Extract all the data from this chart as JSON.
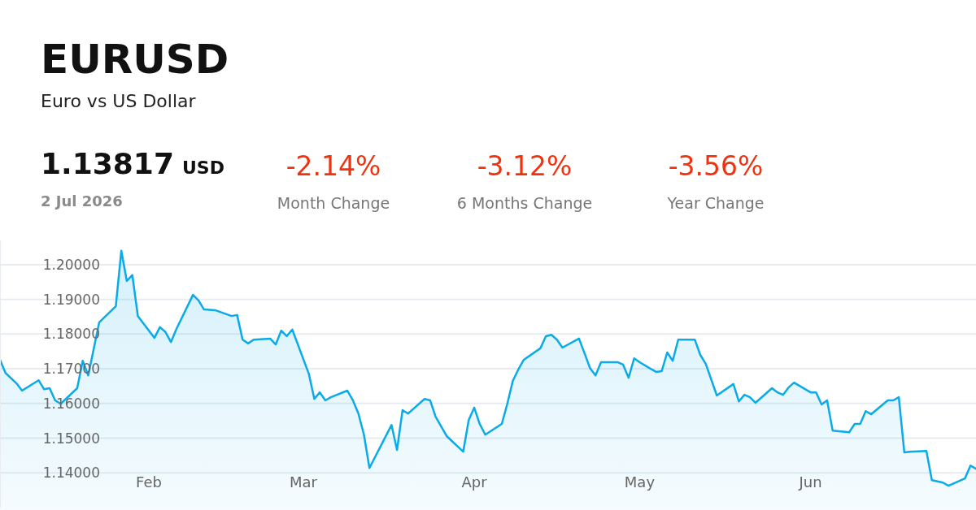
{
  "chart_data": {
    "type": "area",
    "title": "EURUSD",
    "subtitle": "Euro vs US Dollar",
    "annotations": [
      "1.13817",
      "USD",
      "2 Jul 2026",
      "-2.14%",
      "Month Change",
      "-3.12%",
      "6 Months Change",
      "-3.56%",
      "Year Change"
    ],
    "x": [
      "2026-01-05",
      "2026-01-06",
      "2026-01-08",
      "2026-01-09",
      "2026-01-12",
      "2026-01-13",
      "2026-01-14",
      "2026-01-15",
      "2026-01-16",
      "2026-01-19",
      "2026-01-20",
      "2026-01-21",
      "2026-01-23",
      "2026-01-26",
      "2026-01-27",
      "2026-01-28",
      "2026-01-29",
      "2026-01-30",
      "2026-02-02",
      "2026-02-03",
      "2026-02-04",
      "2026-02-05",
      "2026-02-06",
      "2026-02-09",
      "2026-02-10",
      "2026-02-11",
      "2026-02-13",
      "2026-02-16",
      "2026-02-17",
      "2026-02-18",
      "2026-02-19",
      "2026-02-20",
      "2026-02-23",
      "2026-02-24",
      "2026-02-25",
      "2026-02-26",
      "2026-02-27",
      "2026-03-02",
      "2026-03-03",
      "2026-03-04",
      "2026-03-05",
      "2026-03-06",
      "2026-03-09",
      "2026-03-10",
      "2026-03-11",
      "2026-03-12",
      "2026-03-13",
      "2026-03-17",
      "2026-03-18",
      "2026-03-19",
      "2026-03-20",
      "2026-03-23",
      "2026-03-24",
      "2026-03-25",
      "2026-03-27",
      "2026-03-30",
      "2026-03-31",
      "2026-04-01",
      "2026-04-02",
      "2026-04-03",
      "2026-04-06",
      "2026-04-07",
      "2026-04-08",
      "2026-04-09",
      "2026-04-10",
      "2026-04-13",
      "2026-04-14",
      "2026-04-15",
      "2026-04-16",
      "2026-04-17",
      "2026-04-20",
      "2026-04-21",
      "2026-04-22",
      "2026-04-23",
      "2026-04-24",
      "2026-04-27",
      "2026-04-28",
      "2026-04-29",
      "2026-04-30",
      "2026-05-01",
      "2026-05-03",
      "2026-05-04",
      "2026-05-05",
      "2026-05-06",
      "2026-05-07",
      "2026-05-08",
      "2026-05-11",
      "2026-05-12",
      "2026-05-13",
      "2026-05-15",
      "2026-05-18",
      "2026-05-19",
      "2026-05-20",
      "2026-05-21",
      "2026-05-22",
      "2026-05-25",
      "2026-05-26",
      "2026-05-27",
      "2026-05-28",
      "2026-05-29",
      "2026-06-01",
      "2026-06-02",
      "2026-06-03",
      "2026-06-04",
      "2026-06-05",
      "2026-06-08",
      "2026-06-09",
      "2026-06-10",
      "2026-06-11",
      "2026-06-12",
      "2026-06-15",
      "2026-06-16",
      "2026-06-17",
      "2026-06-18",
      "2026-06-19",
      "2026-06-22",
      "2026-06-23",
      "2026-06-25",
      "2026-06-26",
      "2026-06-29",
      "2026-06-30",
      "2026-07-01"
    ],
    "series": [
      {
        "color": "#0aabe8",
        "values": [
          1.1726,
          1.1688,
          1.1658,
          1.1637,
          1.1667,
          1.1641,
          1.1644,
          1.1609,
          1.1599,
          1.1644,
          1.1723,
          1.1681,
          1.1834,
          1.188,
          1.204,
          1.1953,
          1.197,
          1.1852,
          1.1789,
          1.182,
          1.1806,
          1.1777,
          1.1815,
          1.1913,
          1.1897,
          1.1871,
          1.1869,
          1.1852,
          1.1855,
          1.1784,
          1.1773,
          1.1784,
          1.1787,
          1.177,
          1.181,
          1.1794,
          1.1813,
          1.1686,
          1.1613,
          1.1632,
          1.1609,
          1.1618,
          1.1637,
          1.1609,
          1.1571,
          1.151,
          1.1414,
          1.1538,
          1.1466,
          1.1581,
          1.1571,
          1.1613,
          1.1609,
          1.1562,
          1.1506,
          1.1461,
          1.1552,
          1.1588,
          1.1541,
          1.151,
          1.1541,
          1.1599,
          1.1665,
          1.1698,
          1.1726,
          1.1759,
          1.1794,
          1.1798,
          1.1784,
          1.1761,
          1.1787,
          1.1745,
          1.1702,
          1.1681,
          1.1719,
          1.1719,
          1.1712,
          1.1674,
          1.173,
          1.1719,
          1.17,
          1.1691,
          1.1693,
          1.1747,
          1.1723,
          1.1784,
          1.1784,
          1.174,
          1.1714,
          1.1623,
          1.1656,
          1.1606,
          1.1625,
          1.1618,
          1.1602,
          1.1644,
          1.1632,
          1.1625,
          1.1646,
          1.166,
          1.1632,
          1.1632,
          1.1597,
          1.1609,
          1.1522,
          1.1517,
          1.1541,
          1.1541,
          1.1578,
          1.1569,
          1.1609,
          1.1609,
          1.1618,
          1.1459,
          1.1461,
          1.1463,
          1.1379,
          1.1372,
          1.1363,
          1.1384,
          1.1421,
          1.1412
        ]
      }
    ],
    "xlim": [
      "2026-01-05",
      "2026-07-01"
    ],
    "xticks": [
      {
        "value": "2026-02-01",
        "label": "Feb"
      },
      {
        "value": "2026-03-01",
        "label": "Mar"
      },
      {
        "value": "2026-04-01",
        "label": "Apr"
      },
      {
        "value": "2026-05-01",
        "label": "May"
      },
      {
        "value": "2026-06-01",
        "label": "Jun"
      }
    ],
    "ylim": [
      1.13,
      1.207
    ],
    "yticks": [
      {
        "value": 1.14,
        "label": "1.14000"
      },
      {
        "value": 1.15,
        "label": "1.15000"
      },
      {
        "value": 1.16,
        "label": "1.16000"
      },
      {
        "value": 1.17,
        "label": "1.17000"
      },
      {
        "value": 1.18,
        "label": "1.18000"
      },
      {
        "value": 1.19,
        "label": "1.19000"
      },
      {
        "value": 1.2,
        "label": "1.20000"
      }
    ],
    "grid": "y",
    "marker": "none",
    "line_style": "solid"
  }
}
